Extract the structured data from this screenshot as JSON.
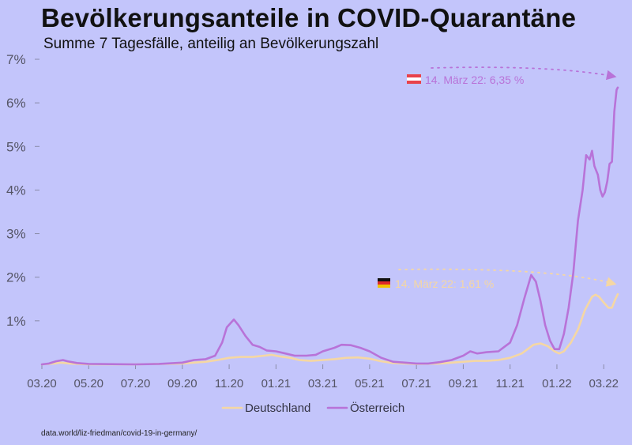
{
  "title": "Bevölkerungsanteile in COVID-Quarantäne",
  "subtitle": "Summe 7 Tagesfälle, anteilig an Bevölkerungszahl",
  "source": "data.world/liz-friedman/covid-19-in-germany/",
  "colors": {
    "background": "#c3c5fb",
    "deutschland": "#f5d7a3",
    "oesterreich": "#b873d8",
    "axis_text": "#555566"
  },
  "chart_data": {
    "type": "line",
    "title": "Bevölkerungsanteile in COVID-Quarantäne",
    "subtitle": "Summe 7 Tagesfälle, anteilig an Bevölkerungszahl",
    "x_unit": "months since 2020-03",
    "xlim": [
      0,
      24.6
    ],
    "ylim": [
      0,
      7
    ],
    "yticks": [
      {
        "value": 1,
        "label": "1%"
      },
      {
        "value": 2,
        "label": "2%"
      },
      {
        "value": 3,
        "label": "3%"
      },
      {
        "value": 4,
        "label": "4%"
      },
      {
        "value": 5,
        "label": "5%"
      },
      {
        "value": 6,
        "label": "6%"
      },
      {
        "value": 7,
        "label": "7%"
      }
    ],
    "xticks": [
      {
        "value": 0,
        "label": "03.20"
      },
      {
        "value": 2,
        "label": "05.20"
      },
      {
        "value": 4,
        "label": "07.20"
      },
      {
        "value": 6,
        "label": "09.20"
      },
      {
        "value": 8,
        "label": "11.20"
      },
      {
        "value": 10,
        "label": "01.21"
      },
      {
        "value": 12,
        "label": "03.21"
      },
      {
        "value": 14,
        "label": "05.21"
      },
      {
        "value": 16,
        "label": "07.21"
      },
      {
        "value": 18,
        "label": "09.21"
      },
      {
        "value": 20,
        "label": "11.21"
      },
      {
        "value": 22,
        "label": "01.22"
      },
      {
        "value": 24,
        "label": "03.22"
      }
    ],
    "legend": {
      "placement": "bottom-center"
    },
    "series": [
      {
        "name": "Deutschland",
        "color": "#f5d7a3",
        "points": [
          [
            0,
            0
          ],
          [
            0.5,
            0.02
          ],
          [
            0.8,
            0.04
          ],
          [
            1.2,
            0.02
          ],
          [
            2,
            0
          ],
          [
            4,
            0
          ],
          [
            5,
            0.01
          ],
          [
            6,
            0.02
          ],
          [
            7,
            0.06
          ],
          [
            7.5,
            0.1
          ],
          [
            8,
            0.15
          ],
          [
            8.5,
            0.17
          ],
          [
            9,
            0.17
          ],
          [
            9.5,
            0.2
          ],
          [
            9.8,
            0.22
          ],
          [
            10.2,
            0.18
          ],
          [
            10.6,
            0.15
          ],
          [
            11,
            0.1
          ],
          [
            11.5,
            0.08
          ],
          [
            12,
            0.1
          ],
          [
            12.5,
            0.12
          ],
          [
            13,
            0.15
          ],
          [
            13.5,
            0.16
          ],
          [
            14,
            0.13
          ],
          [
            14.5,
            0.07
          ],
          [
            15,
            0.03
          ],
          [
            16,
            0.01
          ],
          [
            17,
            0.02
          ],
          [
            18,
            0.06
          ],
          [
            18.5,
            0.08
          ],
          [
            19,
            0.08
          ],
          [
            19.5,
            0.1
          ],
          [
            20,
            0.15
          ],
          [
            20.5,
            0.25
          ],
          [
            21,
            0.45
          ],
          [
            21.3,
            0.48
          ],
          [
            21.6,
            0.42
          ],
          [
            21.9,
            0.3
          ],
          [
            22.1,
            0.25
          ],
          [
            22.3,
            0.3
          ],
          [
            22.6,
            0.5
          ],
          [
            22.9,
            0.8
          ],
          [
            23.2,
            1.25
          ],
          [
            23.5,
            1.55
          ],
          [
            23.65,
            1.6
          ],
          [
            23.8,
            1.55
          ],
          [
            24.0,
            1.42
          ],
          [
            24.2,
            1.3
          ],
          [
            24.35,
            1.3
          ],
          [
            24.5,
            1.5
          ],
          [
            24.6,
            1.61
          ]
        ]
      },
      {
        "name": "Österreich",
        "color": "#b873d8",
        "points": [
          [
            0,
            0
          ],
          [
            0.3,
            0.02
          ],
          [
            0.6,
            0.07
          ],
          [
            0.9,
            0.1
          ],
          [
            1.1,
            0.07
          ],
          [
            1.5,
            0.03
          ],
          [
            2,
            0.01
          ],
          [
            4,
            0
          ],
          [
            5,
            0.01
          ],
          [
            6,
            0.04
          ],
          [
            6.5,
            0.1
          ],
          [
            7,
            0.12
          ],
          [
            7.4,
            0.2
          ],
          [
            7.7,
            0.5
          ],
          [
            7.9,
            0.85
          ],
          [
            8.2,
            1.03
          ],
          [
            8.4,
            0.9
          ],
          [
            8.7,
            0.65
          ],
          [
            9,
            0.45
          ],
          [
            9.3,
            0.4
          ],
          [
            9.6,
            0.32
          ],
          [
            10,
            0.3
          ],
          [
            10.4,
            0.25
          ],
          [
            10.8,
            0.2
          ],
          [
            11.3,
            0.2
          ],
          [
            11.7,
            0.22
          ],
          [
            12,
            0.3
          ],
          [
            12.5,
            0.38
          ],
          [
            12.8,
            0.45
          ],
          [
            13.2,
            0.44
          ],
          [
            13.6,
            0.38
          ],
          [
            14,
            0.3
          ],
          [
            14.5,
            0.15
          ],
          [
            15,
            0.06
          ],
          [
            16,
            0.02
          ],
          [
            16.5,
            0.02
          ],
          [
            17,
            0.05
          ],
          [
            17.5,
            0.1
          ],
          [
            18,
            0.2
          ],
          [
            18.3,
            0.3
          ],
          [
            18.6,
            0.25
          ],
          [
            19,
            0.28
          ],
          [
            19.5,
            0.3
          ],
          [
            20,
            0.5
          ],
          [
            20.3,
            0.9
          ],
          [
            20.6,
            1.5
          ],
          [
            20.9,
            2.05
          ],
          [
            21.1,
            1.9
          ],
          [
            21.3,
            1.45
          ],
          [
            21.5,
            0.9
          ],
          [
            21.7,
            0.55
          ],
          [
            21.9,
            0.35
          ],
          [
            22.1,
            0.35
          ],
          [
            22.3,
            0.7
          ],
          [
            22.5,
            1.3
          ],
          [
            22.7,
            2.1
          ],
          [
            22.9,
            3.3
          ],
          [
            23.1,
            4.0
          ],
          [
            23.25,
            4.8
          ],
          [
            23.4,
            4.7
          ],
          [
            23.5,
            4.9
          ],
          [
            23.6,
            4.55
          ],
          [
            23.75,
            4.35
          ],
          [
            23.85,
            4.0
          ],
          [
            23.95,
            3.85
          ],
          [
            24.05,
            3.95
          ],
          [
            24.15,
            4.2
          ],
          [
            24.25,
            4.6
          ],
          [
            24.35,
            4.65
          ],
          [
            24.45,
            5.8
          ],
          [
            24.55,
            6.3
          ],
          [
            24.6,
            6.35
          ]
        ]
      }
    ],
    "annotations": [
      {
        "series": "Österreich",
        "text": "14. März 22: 6,35 %",
        "flag": "austria-flag"
      },
      {
        "series": "Deutschland",
        "text": "14. März 22: 1,61 %",
        "flag": "germany-flag"
      }
    ]
  }
}
